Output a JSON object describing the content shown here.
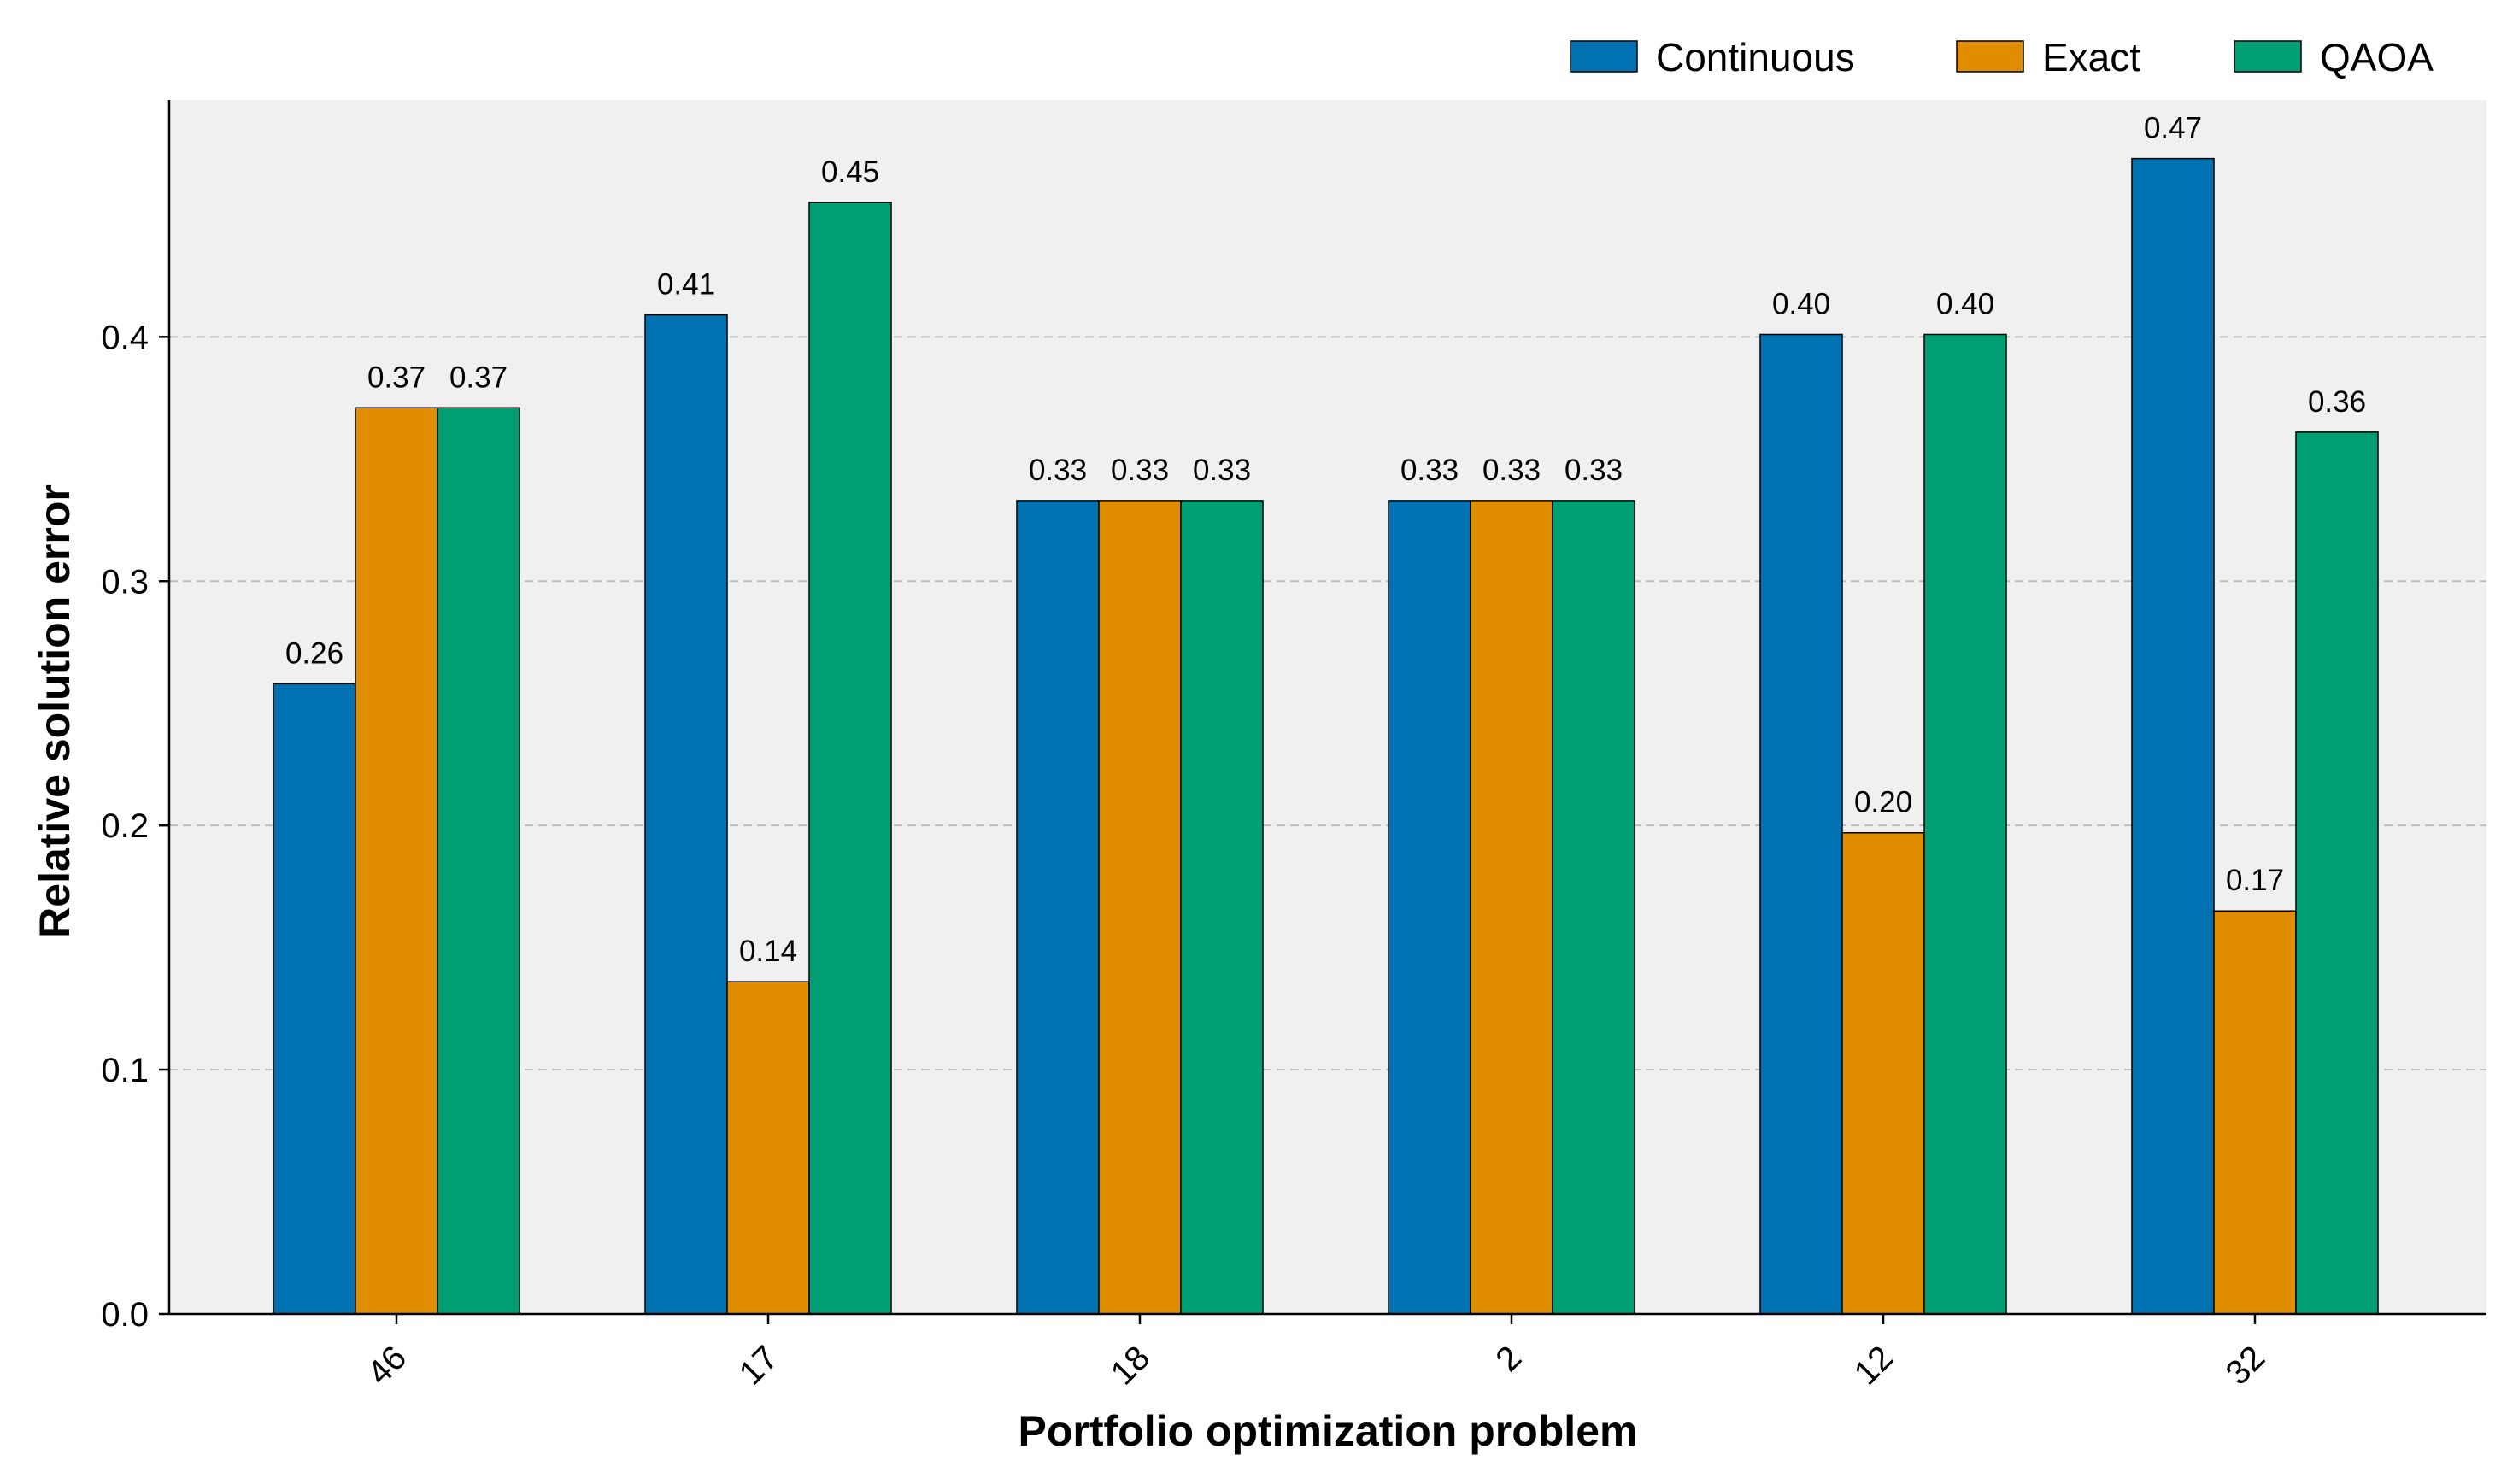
{
  "chart_data": {
    "type": "bar",
    "title": "",
    "xlabel": "Portfolio optimization problem",
    "ylabel": "Relative solution error",
    "categories": [
      "46",
      "17",
      "18",
      "2",
      "12",
      "32"
    ],
    "series": [
      {
        "name": "Continuous",
        "color": "#0072B2",
        "values": [
          0.258,
          0.409,
          0.333,
          0.333,
          0.401,
          0.473
        ],
        "labels": [
          "0.26",
          "0.41",
          "0.33",
          "0.33",
          "0.40",
          "0.47"
        ]
      },
      {
        "name": "Exact",
        "color": "#E08E00",
        "values": [
          0.371,
          0.136,
          0.333,
          0.333,
          0.197,
          0.165
        ],
        "labels": [
          "0.37",
          "0.14",
          "0.33",
          "0.33",
          "0.20",
          "0.17"
        ]
      },
      {
        "name": "QAOA",
        "color": "#009E73",
        "values": [
          0.371,
          0.455,
          0.333,
          0.333,
          0.401,
          0.361
        ],
        "labels": [
          "0.37",
          "0.45",
          "0.33",
          "0.33",
          "0.40",
          "0.36"
        ]
      }
    ],
    "ylim": [
      0,
      0.497
    ],
    "yticks": [
      "0.0",
      "0.1",
      "0.2",
      "0.3",
      "0.4"
    ],
    "grid": "y-dashed",
    "legend": "top-right",
    "colors": {
      "plot_background": "#F0F0F0",
      "grid": "#BDBDBD",
      "bar_edge": "#000000"
    }
  }
}
